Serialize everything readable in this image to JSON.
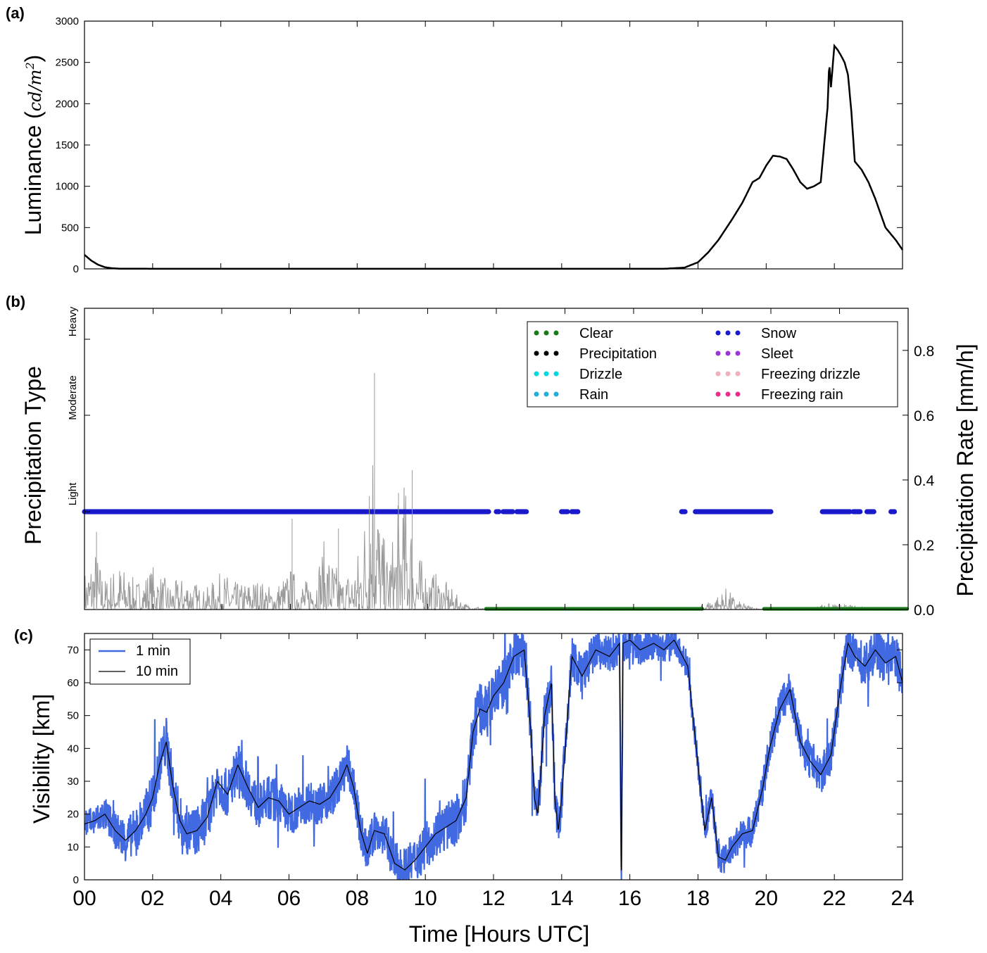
{
  "figure": {
    "xlabel": "Time [Hours UTC]",
    "x_ticks": [
      "00",
      "02",
      "04",
      "06",
      "08",
      "10",
      "12",
      "14",
      "16",
      "18",
      "20",
      "22",
      "24"
    ],
    "xlim": [
      0,
      24
    ]
  },
  "colors": {
    "clear": "#1a7a1a",
    "precipitation": "#000000",
    "drizzle": "#00d8e0",
    "rain": "#1fb0d8",
    "snow": "#1a1acc",
    "sleet": "#9a35d8",
    "freezing_drizzle": "#f0b0be",
    "freezing_rain": "#e8308a",
    "rate_line": "#999999",
    "vis_1min": "#4169e1",
    "vis_10min": "#000000"
  },
  "chart_data": [
    {
      "id": "a",
      "panel_label": "(a)",
      "type": "line",
      "ylabel_main": "Luminance (",
      "ylabel_unit": "cd/m",
      "ylabel_sup": "2",
      "ylabel_close": ")",
      "ylim": [
        0,
        3000
      ],
      "y_ticks": [
        "0",
        "500",
        "1000",
        "1500",
        "2000",
        "2500",
        "3000"
      ],
      "series": [
        {
          "x": [
            0,
            0.2,
            0.4,
            0.6,
            0.8,
            1.0,
            2,
            4,
            8,
            12,
            16,
            17,
            17.6,
            18.0,
            18.3,
            18.6,
            19.0,
            19.3,
            19.6,
            19.8,
            20.0,
            20.2,
            20.4,
            20.6,
            20.8,
            21.0,
            21.2,
            21.4,
            21.6,
            21.8,
            21.85,
            21.9,
            22.0,
            22.1,
            22.2,
            22.3,
            22.4,
            22.5,
            22.6,
            22.8,
            23.0,
            23.2,
            23.5,
            23.8,
            24.0
          ],
          "y": [
            170,
            100,
            50,
            20,
            8,
            3,
            1,
            1,
            1,
            1,
            1,
            1,
            15,
            80,
            200,
            350,
            600,
            800,
            1050,
            1100,
            1250,
            1370,
            1360,
            1330,
            1200,
            1050,
            970,
            1000,
            1050,
            1950,
            2500,
            2200,
            2700,
            2650,
            2580,
            2500,
            2350,
            1900,
            1300,
            1200,
            1050,
            850,
            500,
            350,
            230
          ]
        }
      ]
    },
    {
      "id": "b",
      "panel_label": "(b)",
      "type": "scatter",
      "ylabel_left": "Precipitation Type",
      "ylabel_right": "Precipitation Rate [mm/h]",
      "type_levels": [
        "Light",
        "Moderate",
        "Heavy"
      ],
      "y2lim": [
        0,
        0.93
      ],
      "y2_ticks": [
        "0.0",
        "0.2",
        "0.4",
        "0.6",
        "0.8"
      ],
      "legend": [
        {
          "label": "Clear",
          "color_key": "clear"
        },
        {
          "label": "Snow",
          "color_key": "snow"
        },
        {
          "label": "Precipitation",
          "color_key": "precipitation"
        },
        {
          "label": "Sleet",
          "color_key": "sleet"
        },
        {
          "label": "Drizzle",
          "color_key": "drizzle"
        },
        {
          "label": "Freezing drizzle",
          "color_key": "freezing_drizzle"
        },
        {
          "label": "Rain",
          "color_key": "rain"
        },
        {
          "label": "Freezing rain",
          "color_key": "freezing_rain"
        }
      ],
      "snow_light_intervals": [
        [
          0,
          11.8
        ],
        [
          12.0,
          12.1
        ],
        [
          12.2,
          12.5
        ],
        [
          12.6,
          12.9
        ],
        [
          13.9,
          14.1
        ],
        [
          14.2,
          14.4
        ],
        [
          17.4,
          17.5
        ],
        [
          17.8,
          20.0
        ],
        [
          21.5,
          22.3
        ],
        [
          22.4,
          22.6
        ],
        [
          22.8,
          23.0
        ],
        [
          23.5,
          23.6
        ]
      ],
      "clear_intervals": [
        [
          11.7,
          18.0
        ],
        [
          19.8,
          24.0
        ]
      ],
      "rate_envelope": {
        "x": [
          0,
          0.3,
          0.6,
          1.0,
          1.5,
          2.0,
          2.5,
          3.0,
          3.5,
          4.0,
          4.5,
          5.0,
          5.5,
          6.0,
          6.5,
          7.0,
          7.5,
          7.9,
          8.1,
          8.3,
          8.45,
          8.6,
          8.8,
          9.0,
          9.2,
          9.4,
          9.6,
          9.8,
          10.0,
          10.3,
          10.6,
          10.9,
          11.1,
          11.3,
          11.5,
          11.7,
          17.8,
          18.2,
          18.5,
          18.7,
          19.0,
          19.3,
          19.6,
          19.8,
          21.2,
          21.5,
          24
        ],
        "y": [
          0.12,
          0.2,
          0.1,
          0.15,
          0.09,
          0.14,
          0.08,
          0.11,
          0.06,
          0.12,
          0.08,
          0.1,
          0.07,
          0.13,
          0.09,
          0.22,
          0.1,
          0.16,
          0.25,
          0.5,
          0.73,
          0.3,
          0.18,
          0.24,
          0.38,
          0.41,
          0.26,
          0.16,
          0.13,
          0.11,
          0.08,
          0.04,
          0.02,
          0.01,
          0.01,
          0.0,
          0.0,
          0.03,
          0.05,
          0.07,
          0.03,
          0.015,
          0.005,
          0.0,
          0.0,
          0.02,
          0.0
        ]
      }
    },
    {
      "id": "c",
      "panel_label": "(c)",
      "type": "line",
      "ylabel": "Visibility [km]",
      "ylim": [
        0,
        75
      ],
      "y_ticks": [
        "0",
        "10",
        "20",
        "30",
        "40",
        "50",
        "60",
        "70"
      ],
      "legend": [
        "1 min",
        "10 min"
      ],
      "series_10min": {
        "name": "10 min",
        "x": [
          0,
          0.3,
          0.6,
          0.9,
          1.2,
          1.5,
          1.8,
          2.0,
          2.2,
          2.4,
          2.6,
          2.8,
          3.0,
          3.3,
          3.6,
          3.9,
          4.2,
          4.5,
          4.8,
          5.1,
          5.4,
          5.7,
          6.0,
          6.3,
          6.6,
          6.9,
          7.2,
          7.5,
          7.7,
          7.9,
          8.1,
          8.3,
          8.5,
          8.8,
          9.1,
          9.4,
          9.7,
          10.0,
          10.3,
          10.6,
          10.9,
          11.2,
          11.4,
          11.6,
          11.8,
          12.0,
          12.3,
          12.6,
          12.9,
          13.1,
          13.2,
          13.3,
          13.5,
          13.7,
          13.8,
          13.9,
          14.0,
          14.3,
          14.6,
          15.0,
          15.4,
          15.7,
          15.75,
          15.8,
          16.0,
          16.3,
          16.7,
          17.0,
          17.3,
          17.7,
          18.0,
          18.2,
          18.4,
          18.6,
          18.8,
          19.0,
          19.3,
          19.6,
          19.9,
          20.1,
          20.4,
          20.7,
          21.0,
          21.3,
          21.6,
          21.9,
          22.2,
          22.4,
          22.6,
          22.9,
          23.2,
          23.5,
          23.8,
          24.0
        ],
        "y": [
          17,
          18,
          20,
          15,
          12,
          15,
          20,
          25,
          35,
          42,
          28,
          18,
          14,
          15,
          19,
          30,
          26,
          35,
          28,
          22,
          25,
          24,
          20,
          22,
          24,
          23,
          25,
          30,
          35,
          28,
          15,
          8,
          15,
          14,
          5,
          3,
          6,
          10,
          14,
          16,
          18,
          25,
          45,
          52,
          51,
          56,
          60,
          68,
          70,
          45,
          25,
          20,
          50,
          60,
          25,
          15,
          25,
          68,
          62,
          70,
          68,
          72,
          0,
          72,
          73,
          70,
          72,
          70,
          73,
          65,
          35,
          15,
          25,
          7,
          6,
          10,
          14,
          15,
          28,
          40,
          52,
          58,
          42,
          36,
          32,
          38,
          60,
          72,
          68,
          65,
          70,
          66,
          68,
          60
        ]
      },
      "series_1min_amplitude": [
        [
          0,
          4
        ],
        [
          2,
          8
        ],
        [
          8,
          6
        ],
        [
          11.4,
          8
        ],
        [
          15.5,
          6
        ],
        [
          18,
          4
        ],
        [
          19.5,
          5
        ],
        [
          24,
          7
        ]
      ]
    }
  ]
}
